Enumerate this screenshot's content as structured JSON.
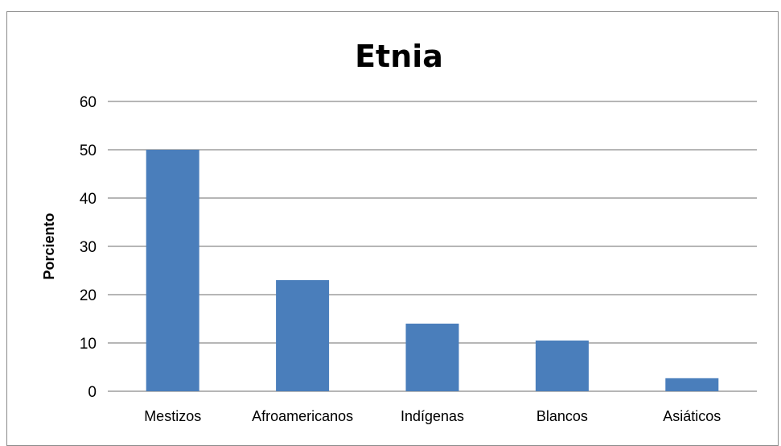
{
  "chart_data": {
    "type": "bar",
    "title": "Etnia",
    "xlabel": "",
    "ylabel": "Porciento",
    "categories": [
      "Mestizos",
      "Afroamericanos",
      "Indígenas",
      "Blancos",
      "Asiáticos"
    ],
    "values": [
      50,
      23,
      14,
      10.5,
      2.7
    ],
    "ylim": [
      0,
      60
    ],
    "yticks": [
      "0",
      "10",
      "20",
      "30",
      "40",
      "50",
      "60"
    ],
    "grid": true,
    "legend": "none",
    "colors": {
      "bar": "#4a7ebb",
      "grid": "#8a8a8a",
      "frame": "#8a8a8a"
    }
  }
}
